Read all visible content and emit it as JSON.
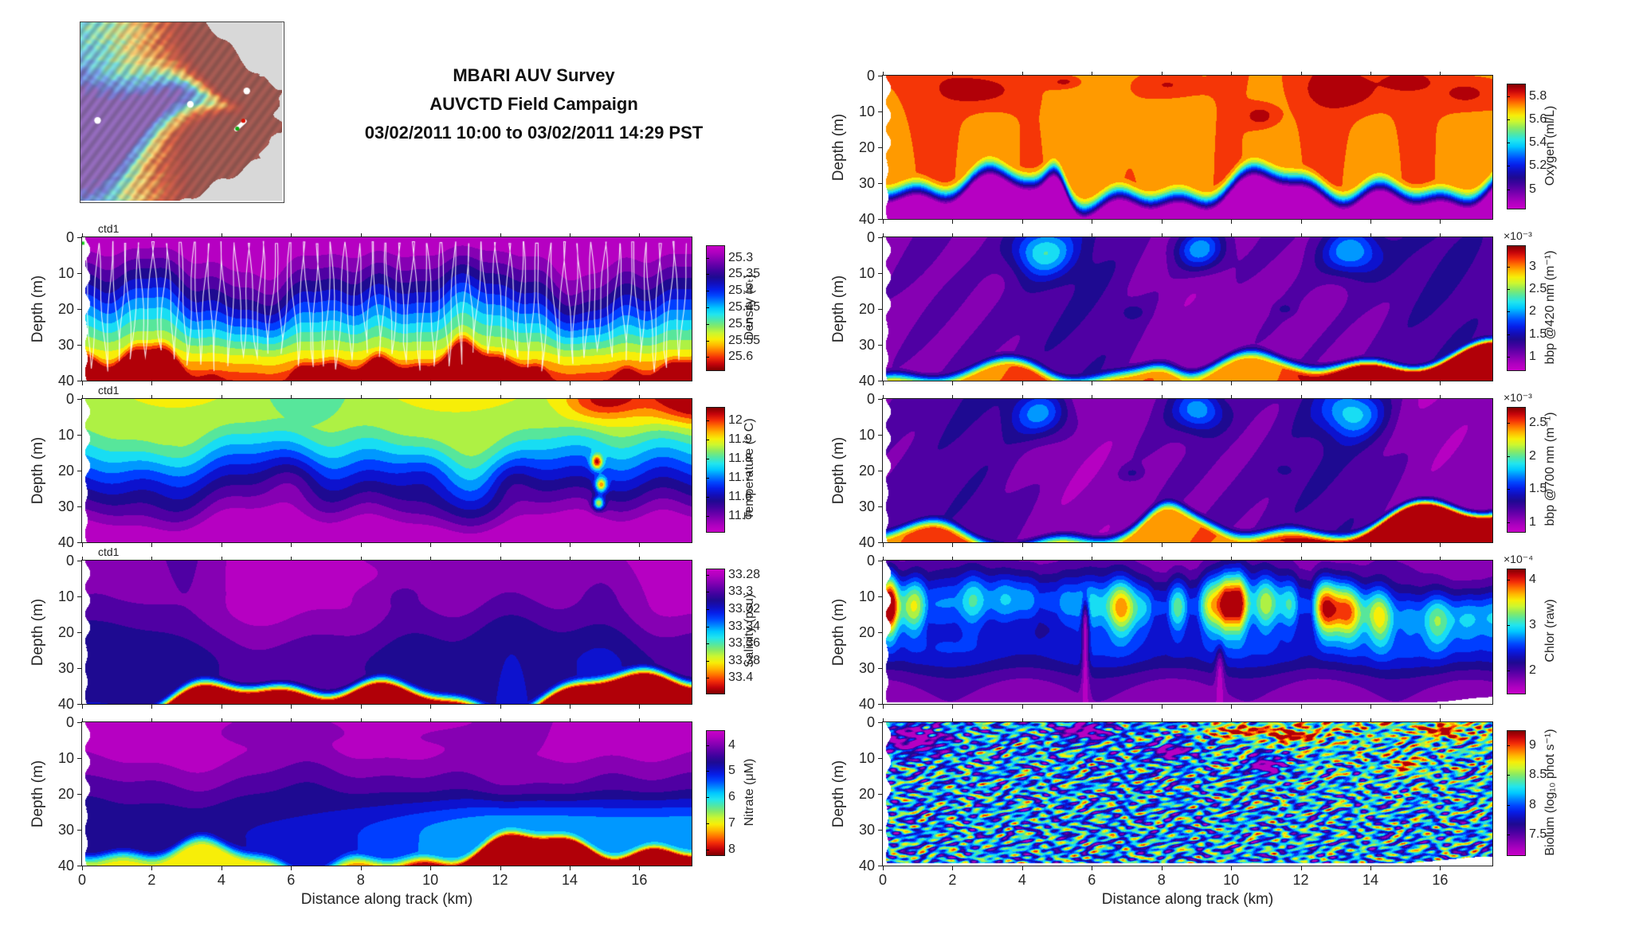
{
  "header": {
    "line1": "MBARI AUV Survey",
    "line2": "AUVCTD Field Campaign",
    "line3": "03/02/2011 10:00 to 03/02/2011 14:29 PST"
  },
  "map_inset": {
    "description": "Monterey Bay bathymetry overview map (gray land, red shallow shelf, rainbow submarine canyon)",
    "markers": [
      "station-dot-west",
      "station-dot-center",
      "station-dot-east",
      "auv-track-with-red-and-green-endpoints"
    ],
    "land_color": "#d8d8d8"
  },
  "axes": {
    "x_label": "Distance along track (km)",
    "x_ticks": [
      "0",
      "2",
      "4",
      "6",
      "8",
      "10",
      "12",
      "14",
      "16"
    ],
    "x_range_km": [
      0,
      17.5
    ],
    "y_label": "Depth (m)",
    "y_ticks": [
      "0",
      "10",
      "20",
      "30",
      "40"
    ],
    "y_range_m": [
      0,
      40
    ]
  },
  "colormap": {
    "style": "magenta-purple-blue-cyan-green-yellow-orange-red-darkred (jet-like)",
    "low": "#c800c8",
    "high": "#800000"
  },
  "chart_data": [
    {
      "id": "density",
      "type": "heatmap",
      "column": "left",
      "row": 1,
      "annotation": "ctd1",
      "colorbar_label": "Density (σₜ)",
      "colorbar_ticks": [
        "25.3",
        "25.35",
        "25.4",
        "25.45",
        "25.5",
        "25.55",
        "25.6"
      ],
      "colorbar_multiplier": "",
      "min_at_top": true,
      "overlay": "white AUV yo-yo sawtooth track",
      "features": "Light 25.3 σₜ magenta surface layer; undulating isopycnals; density increases to >25.6 σₜ in bottom 5 m"
    },
    {
      "id": "temperature",
      "type": "heatmap",
      "column": "left",
      "row": 2,
      "annotation": "ctd1",
      "colorbar_label": "Temperature (° C)",
      "colorbar_ticks": [
        "12",
        "11.9",
        "11.8",
        "11.7",
        "11.6",
        "11.5"
      ],
      "colorbar_multiplier": "",
      "min_at_top": false,
      "overlay": "",
      "features": "11.8–11.9 °C green surface layer; warm >12 °C red patch at surface from ~13–17.5 km; cold <11.5 °C purple water below ~33 m; small warm spots near 15 km at 18–30 m"
    },
    {
      "id": "salinity",
      "type": "heatmap",
      "column": "left",
      "row": 3,
      "annotation": "ctd1",
      "colorbar_label": "Salinity (psu)",
      "colorbar_ticks": [
        "33.28",
        "33.3",
        "33.32",
        "33.34",
        "33.36",
        "33.38",
        "33.4"
      ],
      "colorbar_multiplier": "",
      "min_at_top": true,
      "overlay": "",
      "features": "Fresh 33.28–33.32 psu purple upper layer; sharp halocline near 35 m; >33.4 psu red bottom layer thickening from 12–17.5 km"
    },
    {
      "id": "nitrate",
      "type": "heatmap",
      "column": "left",
      "row": 4,
      "annotation": "",
      "colorbar_label": "Nitrate (μM)",
      "colorbar_ticks": [
        "4",
        "5",
        "6",
        "7",
        "8"
      ],
      "colorbar_multiplier": "",
      "min_at_top": true,
      "overlay": "",
      "features": "Low ~4 μM magenta surface layer; nitrate rises with depth; blue 5–6 μM mid-water beyond ~6 km; >8 μM red bottom layer beyond ~10 km"
    },
    {
      "id": "oxygen",
      "type": "heatmap",
      "column": "right",
      "row": 0,
      "annotation": "",
      "colorbar_label": "Oxygen (ml/L)",
      "colorbar_ticks": [
        "5.8",
        "5.6",
        "5.4",
        "5.2",
        "5"
      ],
      "colorbar_multiplier": "",
      "min_at_top": false,
      "overlay": "",
      "features": "High 5.6–5.9 ml/L orange upper 30 m with dark-red >5.8 patches near 3, 8.5, 13 and 17 km; sharp oxycline at 32–38 m dropping below 5 ml/L (purple)"
    },
    {
      "id": "bbp420",
      "type": "heatmap",
      "column": "right",
      "row": 1,
      "annotation": "",
      "colorbar_label": "bbp @420 nm (m⁻¹)",
      "colorbar_ticks": [
        "3",
        "2.5",
        "2",
        "1.5",
        "1"
      ],
      "colorbar_multiplier": "×10⁻³",
      "min_at_top": false,
      "overlay": "",
      "features": "Low ~1.2×10⁻³ purple upper column; clearer blue blobs near 4.5, 9 and 13.5 km; turbid >3×10⁻³ red bottom layer below ~36 m, thickest toward 13–17 km"
    },
    {
      "id": "bbp700",
      "type": "heatmap",
      "column": "right",
      "row": 2,
      "annotation": "",
      "colorbar_label": "bbp @700 nm (m⁻¹)",
      "colorbar_ticks": [
        "2.5",
        "2",
        "1.5",
        "1"
      ],
      "colorbar_multiplier": "×10⁻³",
      "min_at_top": false,
      "overlay": "",
      "features": "Pattern similar to bbp @420 nm: purple upper water, blue clear blobs, red turbid bottom boundary layer"
    },
    {
      "id": "chlor",
      "type": "heatmap",
      "column": "right",
      "row": 3,
      "annotation": "",
      "colorbar_label": "Chlor (raw)",
      "colorbar_ticks": [
        "4",
        "3",
        "2"
      ],
      "colorbar_multiplier": "×10⁻⁴",
      "min_at_top": false,
      "overlay": "",
      "features": "Subsurface chlorophyll maximum at 10–25 m with intense >4×10⁻⁴ red patches between 4 and 17 km; purple low values at surface and below ~35 m"
    },
    {
      "id": "biolum",
      "type": "heatmap",
      "column": "right",
      "row": 4,
      "annotation": "",
      "colorbar_label": "Biolum (log₁₀ phot s⁻¹)",
      "colorbar_ticks": [
        "9",
        "8.5",
        "8",
        "7.5"
      ],
      "colorbar_multiplier": "",
      "min_at_top": false,
      "overlay": "",
      "features": "Highly patchy speckled field spanning 7.2–9+ log₁₀ phot/s; dark-red >9 patches near surface around 8–12 km; scattered magenta low patches"
    }
  ]
}
